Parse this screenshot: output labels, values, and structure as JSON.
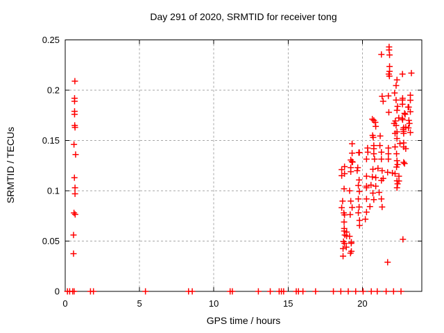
{
  "chart_data": {
    "type": "scatter",
    "title": "Day 291 of 2020, SRMTID for receiver tong",
    "xlabel": "GPS time / hours",
    "ylabel": "SRMTID / TECUs",
    "xlim": [
      0,
      24
    ],
    "ylim": [
      0,
      0.25
    ],
    "x_tick_values": [
      0,
      5,
      10,
      15,
      20
    ],
    "x_tick_labels": [
      "0",
      "5",
      "10",
      "15",
      "20"
    ],
    "y_tick_values": [
      0,
      0.05,
      0.1,
      0.15,
      0.2,
      0.25
    ],
    "y_tick_labels": [
      "0",
      "0.05",
      "0.1",
      "0.15",
      "0.2",
      "0.25"
    ],
    "grid": true,
    "legend_position": "none",
    "marker": "plus",
    "series": [
      {
        "name": "SRMTID",
        "points": [
          [
            0.65,
            0.209
          ],
          [
            0.63,
            0.192
          ],
          [
            0.63,
            0.189
          ],
          [
            0.63,
            0.179
          ],
          [
            0.63,
            0.176
          ],
          [
            0.64,
            0.165
          ],
          [
            0.66,
            0.163
          ],
          [
            0.59,
            0.146
          ],
          [
            0.7,
            0.136
          ],
          [
            0.62,
            0.113
          ],
          [
            0.66,
            0.103
          ],
          [
            0.66,
            0.097
          ],
          [
            0.59,
            0.078
          ],
          [
            0.67,
            0.0765
          ],
          [
            0.56,
            0.056
          ],
          [
            0.56,
            0.0375
          ],
          [
            0.15,
            0
          ],
          [
            0.3,
            0
          ],
          [
            0.5,
            0
          ],
          [
            0.6,
            0
          ],
          [
            1.7,
            0
          ],
          [
            1.9,
            0
          ],
          [
            5.4,
            0
          ],
          [
            8.3,
            0
          ],
          [
            8.55,
            0
          ],
          [
            11.1,
            0
          ],
          [
            11.25,
            0
          ],
          [
            13.0,
            0
          ],
          [
            13.8,
            0
          ],
          [
            14.4,
            0
          ],
          [
            14.55,
            0
          ],
          [
            14.7,
            0
          ],
          [
            15.55,
            0
          ],
          [
            15.7,
            0
          ],
          [
            16.0,
            0
          ],
          [
            16.85,
            0
          ],
          [
            18.05,
            0
          ],
          [
            18.55,
            0
          ],
          [
            19.05,
            0
          ],
          [
            19.55,
            0
          ],
          [
            20.05,
            0
          ],
          [
            20.6,
            0
          ],
          [
            21.0,
            0
          ],
          [
            21.6,
            0
          ],
          [
            22.1,
            0
          ],
          [
            22.6,
            0
          ],
          [
            18.61,
            0.121
          ],
          [
            18.61,
            0.115
          ],
          [
            18.8,
            0.124
          ],
          [
            18.8,
            0.117
          ],
          [
            18.77,
            0.102
          ],
          [
            18.67,
            0.0897
          ],
          [
            18.61,
            0.0832
          ],
          [
            18.75,
            0.078
          ],
          [
            18.8,
            0.076
          ],
          [
            18.77,
            0.069
          ],
          [
            18.78,
            0.0625
          ],
          [
            18.78,
            0.06
          ],
          [
            18.94,
            0.059
          ],
          [
            18.82,
            0.056
          ],
          [
            18.94,
            0.055
          ],
          [
            18.73,
            0.0495
          ],
          [
            18.8,
            0.0478
          ],
          [
            18.7,
            0.0425
          ],
          [
            18.92,
            0.044
          ],
          [
            18.7,
            0.035
          ],
          [
            19.14,
            0.1
          ],
          [
            19.14,
            0.0547
          ],
          [
            19.18,
            0.0763
          ],
          [
            19.22,
            0.1306
          ],
          [
            19.22,
            0.123
          ],
          [
            19.22,
            0.119
          ],
          [
            19.22,
            0.0897
          ],
          [
            19.25,
            0.0478
          ],
          [
            19.26,
            0.049
          ],
          [
            19.26,
            0.0398
          ],
          [
            19.3,
            0.129
          ],
          [
            19.31,
            0.1467
          ],
          [
            19.31,
            0.1374
          ],
          [
            19.31,
            0.0834
          ],
          [
            19.34,
            0.1285
          ],
          [
            19.2,
            0.038
          ],
          [
            19.65,
            0.12
          ],
          [
            19.69,
            0.123
          ],
          [
            19.73,
            0.1053
          ],
          [
            19.73,
            0.0919
          ],
          [
            19.73,
            0.0781
          ],
          [
            19.76,
            0.1379
          ],
          [
            19.78,
            0.1108
          ],
          [
            19.78,
            0.0839
          ],
          [
            19.8,
            0.138
          ],
          [
            19.8,
            0.0993
          ],
          [
            19.81,
            0.0706
          ],
          [
            19.81,
            0.0655
          ],
          [
            20.2,
            0.0717
          ],
          [
            20.28,
            0.1315
          ],
          [
            20.28,
            0.1145
          ],
          [
            20.28,
            0.1046
          ],
          [
            20.28,
            0.103
          ],
          [
            20.28,
            0.0919
          ],
          [
            20.28,
            0.0788
          ],
          [
            20.35,
            0.1425
          ],
          [
            20.37,
            0.1384
          ],
          [
            20.51,
            0.0843
          ],
          [
            20.58,
            0.1057
          ],
          [
            20.67,
            0.1712
          ],
          [
            20.67,
            0.1138
          ],
          [
            20.69,
            0.155
          ],
          [
            20.73,
            0.153
          ],
          [
            20.71,
            0.1214
          ],
          [
            20.71,
            0.0977
          ],
          [
            20.77,
            0.17
          ],
          [
            20.77,
            0.145
          ],
          [
            20.77,
            0.1418
          ],
          [
            20.77,
            0.1368
          ],
          [
            20.77,
            0.0912
          ],
          [
            20.82,
            0.1315
          ],
          [
            20.87,
            0.168
          ],
          [
            20.9,
            0.164
          ],
          [
            20.9,
            0.1131
          ],
          [
            20.9,
            0.1046
          ],
          [
            21.05,
            0.1223
          ],
          [
            21.13,
            0.0984
          ],
          [
            21.18,
            0.145
          ],
          [
            21.2,
            0.1545
          ],
          [
            21.28,
            0.2355
          ],
          [
            21.28,
            0.1384
          ],
          [
            21.28,
            0.1315
          ],
          [
            21.28,
            0.1103
          ],
          [
            21.28,
            0.0919
          ],
          [
            21.33,
            0.194
          ],
          [
            21.33,
            0.12
          ],
          [
            21.33,
            0.0839
          ],
          [
            21.4,
            0.189
          ],
          [
            21.4,
            0.1122
          ],
          [
            21.7,
            0.1184
          ],
          [
            21.7,
            0.029
          ],
          [
            21.75,
            0.1943
          ],
          [
            21.75,
            0.1425
          ],
          [
            21.75,
            0.1368
          ],
          [
            21.75,
            0.1315
          ],
          [
            21.78,
            0.216
          ],
          [
            21.78,
            0.178
          ],
          [
            21.8,
            0.243
          ],
          [
            21.8,
            0.24
          ],
          [
            21.82,
            0.214
          ],
          [
            21.83,
            0.235
          ],
          [
            21.83,
            0.2236
          ],
          [
            21.83,
            0.2188
          ],
          [
            22.02,
            0.1177
          ],
          [
            22.14,
            0.167
          ],
          [
            22.17,
            0.1972
          ],
          [
            22.2,
            0.157
          ],
          [
            22.2,
            0.1436
          ],
          [
            22.2,
            0.117
          ],
          [
            22.22,
            0.1694
          ],
          [
            22.27,
            0.2046
          ],
          [
            22.27,
            0.1902
          ],
          [
            22.27,
            0.165
          ],
          [
            22.3,
            0.1368
          ],
          [
            22.3,
            0.1236
          ],
          [
            22.33,
            0.2103
          ],
          [
            22.33,
            0.18
          ],
          [
            22.33,
            0.1586
          ],
          [
            22.33,
            0.152
          ],
          [
            22.33,
            0.1299
          ],
          [
            22.33,
            0.1099
          ],
          [
            22.33,
            0.103
          ],
          [
            22.37,
            0.1839
          ],
          [
            22.37,
            0.126
          ],
          [
            22.37,
            0.1069
          ],
          [
            22.45,
            0.1724
          ],
          [
            22.46,
            0.1145
          ],
          [
            22.46,
            0.1097
          ],
          [
            22.53,
            0.147
          ],
          [
            22.68,
            0.172
          ],
          [
            22.7,
            0.216
          ],
          [
            22.7,
            0.1902
          ],
          [
            22.7,
            0.186
          ],
          [
            22.71,
            0.192
          ],
          [
            22.71,
            0.1706
          ],
          [
            22.73,
            0.0517
          ],
          [
            22.75,
            0.161
          ],
          [
            22.78,
            0.1628
          ],
          [
            22.78,
            0.159
          ],
          [
            22.78,
            0.157
          ],
          [
            22.78,
            0.1476
          ],
          [
            22.78,
            0.1436
          ],
          [
            22.78,
            0.1283
          ],
          [
            22.84,
            0.177
          ],
          [
            22.84,
            0.1271
          ],
          [
            22.88,
            0.176
          ],
          [
            22.92,
            0.1632
          ],
          [
            22.92,
            0.1418
          ],
          [
            23.08,
            0.1832
          ],
          [
            23.12,
            0.1832
          ],
          [
            23.1,
            0.1625
          ],
          [
            23.13,
            0.17
          ],
          [
            23.17,
            0.167
          ],
          [
            23.23,
            0.195
          ],
          [
            23.23,
            0.19
          ],
          [
            23.23,
            0.1786
          ],
          [
            23.23,
            0.1579
          ],
          [
            23.3,
            0.217
          ]
        ]
      }
    ]
  },
  "colors": {
    "marker": "#ff0000",
    "grid": "#a6a6a6",
    "axis": "#000000",
    "background": "#ffffff",
    "text": "#000000"
  }
}
